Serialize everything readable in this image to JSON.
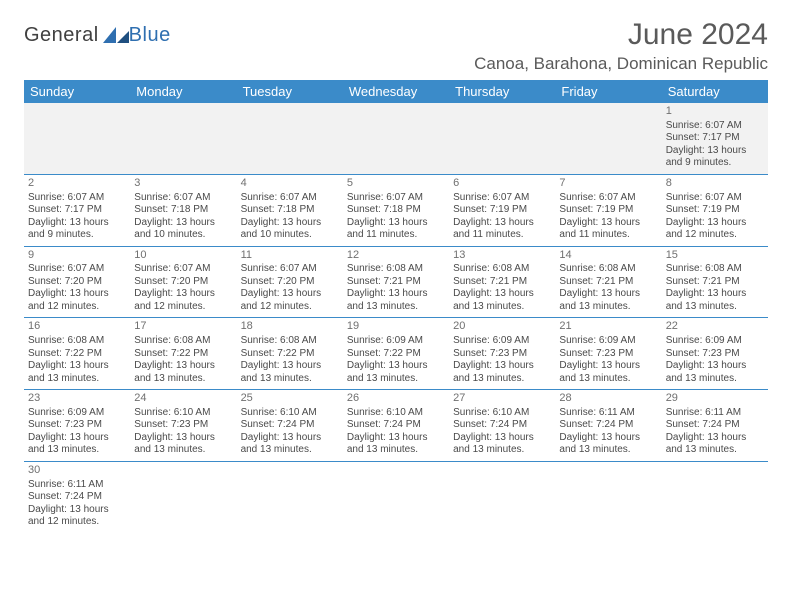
{
  "brand": {
    "part1": "General",
    "part2": "Blue"
  },
  "title": "June 2024",
  "location": "Canoa, Barahona, Dominican Republic",
  "colors": {
    "headerBlue": "#3b8bc9",
    "ruleBlue": "#3b8bc9",
    "textGray": "#4a4a4a",
    "titleGray": "#5a5a5a",
    "brandBlue": "#2f6fb0"
  },
  "dayHeaders": [
    "Sunday",
    "Monday",
    "Tuesday",
    "Wednesday",
    "Thursday",
    "Friday",
    "Saturday"
  ],
  "weeks": [
    [
      null,
      null,
      null,
      null,
      null,
      null,
      {
        "n": "1",
        "sr": "Sunrise: 6:07 AM",
        "ss": "Sunset: 7:17 PM",
        "d1": "Daylight: 13 hours",
        "d2": "and 9 minutes."
      }
    ],
    [
      {
        "n": "2",
        "sr": "Sunrise: 6:07 AM",
        "ss": "Sunset: 7:17 PM",
        "d1": "Daylight: 13 hours",
        "d2": "and 9 minutes."
      },
      {
        "n": "3",
        "sr": "Sunrise: 6:07 AM",
        "ss": "Sunset: 7:18 PM",
        "d1": "Daylight: 13 hours",
        "d2": "and 10 minutes."
      },
      {
        "n": "4",
        "sr": "Sunrise: 6:07 AM",
        "ss": "Sunset: 7:18 PM",
        "d1": "Daylight: 13 hours",
        "d2": "and 10 minutes."
      },
      {
        "n": "5",
        "sr": "Sunrise: 6:07 AM",
        "ss": "Sunset: 7:18 PM",
        "d1": "Daylight: 13 hours",
        "d2": "and 11 minutes."
      },
      {
        "n": "6",
        "sr": "Sunrise: 6:07 AM",
        "ss": "Sunset: 7:19 PM",
        "d1": "Daylight: 13 hours",
        "d2": "and 11 minutes."
      },
      {
        "n": "7",
        "sr": "Sunrise: 6:07 AM",
        "ss": "Sunset: 7:19 PM",
        "d1": "Daylight: 13 hours",
        "d2": "and 11 minutes."
      },
      {
        "n": "8",
        "sr": "Sunrise: 6:07 AM",
        "ss": "Sunset: 7:19 PM",
        "d1": "Daylight: 13 hours",
        "d2": "and 12 minutes."
      }
    ],
    [
      {
        "n": "9",
        "sr": "Sunrise: 6:07 AM",
        "ss": "Sunset: 7:20 PM",
        "d1": "Daylight: 13 hours",
        "d2": "and 12 minutes."
      },
      {
        "n": "10",
        "sr": "Sunrise: 6:07 AM",
        "ss": "Sunset: 7:20 PM",
        "d1": "Daylight: 13 hours",
        "d2": "and 12 minutes."
      },
      {
        "n": "11",
        "sr": "Sunrise: 6:07 AM",
        "ss": "Sunset: 7:20 PM",
        "d1": "Daylight: 13 hours",
        "d2": "and 12 minutes."
      },
      {
        "n": "12",
        "sr": "Sunrise: 6:08 AM",
        "ss": "Sunset: 7:21 PM",
        "d1": "Daylight: 13 hours",
        "d2": "and 13 minutes."
      },
      {
        "n": "13",
        "sr": "Sunrise: 6:08 AM",
        "ss": "Sunset: 7:21 PM",
        "d1": "Daylight: 13 hours",
        "d2": "and 13 minutes."
      },
      {
        "n": "14",
        "sr": "Sunrise: 6:08 AM",
        "ss": "Sunset: 7:21 PM",
        "d1": "Daylight: 13 hours",
        "d2": "and 13 minutes."
      },
      {
        "n": "15",
        "sr": "Sunrise: 6:08 AM",
        "ss": "Sunset: 7:21 PM",
        "d1": "Daylight: 13 hours",
        "d2": "and 13 minutes."
      }
    ],
    [
      {
        "n": "16",
        "sr": "Sunrise: 6:08 AM",
        "ss": "Sunset: 7:22 PM",
        "d1": "Daylight: 13 hours",
        "d2": "and 13 minutes."
      },
      {
        "n": "17",
        "sr": "Sunrise: 6:08 AM",
        "ss": "Sunset: 7:22 PM",
        "d1": "Daylight: 13 hours",
        "d2": "and 13 minutes."
      },
      {
        "n": "18",
        "sr": "Sunrise: 6:08 AM",
        "ss": "Sunset: 7:22 PM",
        "d1": "Daylight: 13 hours",
        "d2": "and 13 minutes."
      },
      {
        "n": "19",
        "sr": "Sunrise: 6:09 AM",
        "ss": "Sunset: 7:22 PM",
        "d1": "Daylight: 13 hours",
        "d2": "and 13 minutes."
      },
      {
        "n": "20",
        "sr": "Sunrise: 6:09 AM",
        "ss": "Sunset: 7:23 PM",
        "d1": "Daylight: 13 hours",
        "d2": "and 13 minutes."
      },
      {
        "n": "21",
        "sr": "Sunrise: 6:09 AM",
        "ss": "Sunset: 7:23 PM",
        "d1": "Daylight: 13 hours",
        "d2": "and 13 minutes."
      },
      {
        "n": "22",
        "sr": "Sunrise: 6:09 AM",
        "ss": "Sunset: 7:23 PM",
        "d1": "Daylight: 13 hours",
        "d2": "and 13 minutes."
      }
    ],
    [
      {
        "n": "23",
        "sr": "Sunrise: 6:09 AM",
        "ss": "Sunset: 7:23 PM",
        "d1": "Daylight: 13 hours",
        "d2": "and 13 minutes."
      },
      {
        "n": "24",
        "sr": "Sunrise: 6:10 AM",
        "ss": "Sunset: 7:23 PM",
        "d1": "Daylight: 13 hours",
        "d2": "and 13 minutes."
      },
      {
        "n": "25",
        "sr": "Sunrise: 6:10 AM",
        "ss": "Sunset: 7:24 PM",
        "d1": "Daylight: 13 hours",
        "d2": "and 13 minutes."
      },
      {
        "n": "26",
        "sr": "Sunrise: 6:10 AM",
        "ss": "Sunset: 7:24 PM",
        "d1": "Daylight: 13 hours",
        "d2": "and 13 minutes."
      },
      {
        "n": "27",
        "sr": "Sunrise: 6:10 AM",
        "ss": "Sunset: 7:24 PM",
        "d1": "Daylight: 13 hours",
        "d2": "and 13 minutes."
      },
      {
        "n": "28",
        "sr": "Sunrise: 6:11 AM",
        "ss": "Sunset: 7:24 PM",
        "d1": "Daylight: 13 hours",
        "d2": "and 13 minutes."
      },
      {
        "n": "29",
        "sr": "Sunrise: 6:11 AM",
        "ss": "Sunset: 7:24 PM",
        "d1": "Daylight: 13 hours",
        "d2": "and 13 minutes."
      }
    ],
    [
      {
        "n": "30",
        "sr": "Sunrise: 6:11 AM",
        "ss": "Sunset: 7:24 PM",
        "d1": "Daylight: 13 hours",
        "d2": "and 12 minutes."
      },
      null,
      null,
      null,
      null,
      null,
      null
    ]
  ]
}
